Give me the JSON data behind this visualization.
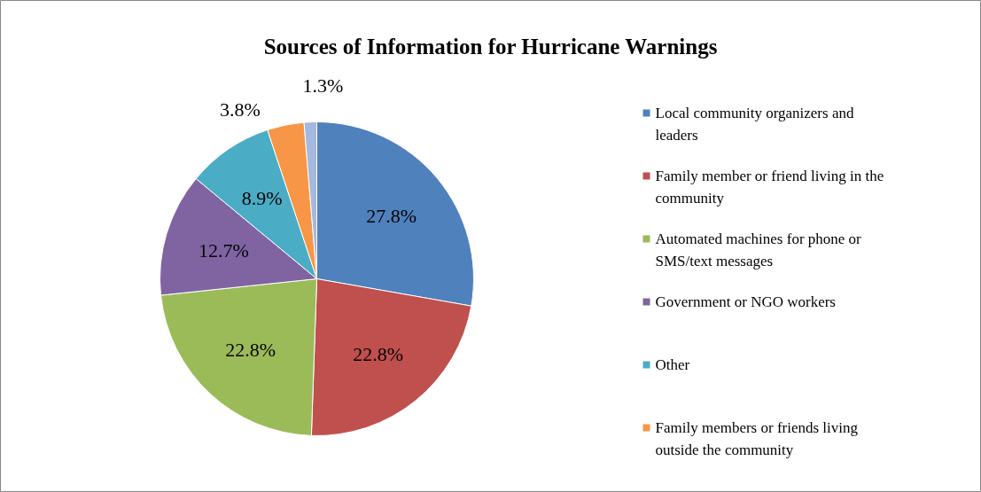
{
  "chart_data": {
    "type": "pie",
    "title": "Sources of Information for Hurricane Warnings",
    "categories": [
      "Local community organizers and leaders",
      "Family member or friend living in the community",
      "Automated machines for phone or SMS/text messages",
      "Government or NGO workers",
      "Other",
      "Family members or friends living outside the community",
      null
    ],
    "values": [
      27.8,
      22.8,
      22.8,
      12.7,
      8.9,
      3.8,
      1.3
    ],
    "colors": [
      "#4f81bd",
      "#c0504d",
      "#9bbb59",
      "#8064a2",
      "#4bacc6",
      "#f79646",
      "#a5b8dd"
    ],
    "value_labels": [
      "27.8%",
      "22.8%",
      "22.8%",
      "12.7%",
      "8.9%",
      "3.8%",
      "1.3%"
    ],
    "legend": "right"
  }
}
